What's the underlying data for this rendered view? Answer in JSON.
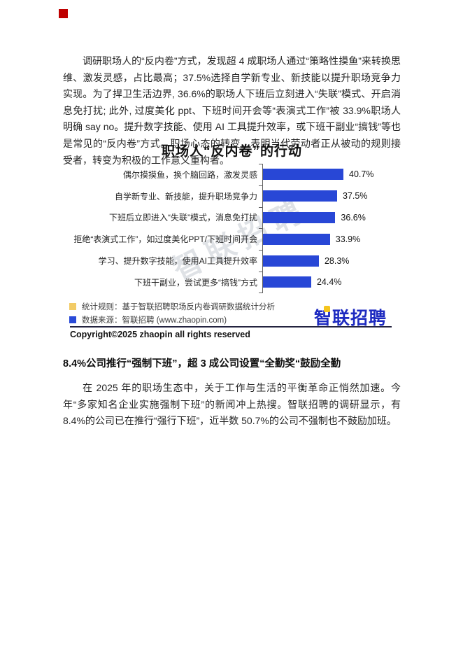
{
  "intro_paragraph": "调研职场人的“反内卷”方式，发现超 4 成职场人通过“策略性摸鱼”来转换思维、激发灵感，占比最高；37.5%选择自学新专业、新技能以提升职场竞争力实现。为了捍卫生活边界, 36.6%的职场人下班后立刻进入“失联”模式、开启消息免打扰; 此外, 过度美化 ppt、下班时间开会等“表演式工作”被 33.9%职场人明确 say no。提升数字技能、使用 AI 工具提升效率，或下班干副业“搞钱”等也是常见的“反内卷”方式。职场心态的转变，表明当代劳动者正从被动的规则接受者，转变为积极的工作意义重构者。",
  "chart_data": {
    "type": "bar",
    "orientation": "horizontal",
    "title": "职场人“反内卷”的行动",
    "categories": [
      "偶尔摸摸鱼，换个脑回路，激发灵感",
      "自学新专业、新技能，提升职场竞争力",
      "下班后立即进入“失联”模式，消息免打扰",
      "拒绝“表演式工作”，如过度美化PPT/下班时间开会",
      "学习、提升数字技能，使用AI工具提升效率",
      "下班干副业，尝试更多“搞钱”方式"
    ],
    "values": [
      40.7,
      37.5,
      36.6,
      33.9,
      28.3,
      24.4
    ],
    "value_labels": [
      "40.7%",
      "37.5%",
      "36.6%",
      "33.9%",
      "28.3%",
      "24.4%"
    ],
    "unit": "%",
    "xlim": [
      0,
      45
    ],
    "grid": false,
    "bar_color": "#2847d6",
    "axis_color": "#606060",
    "watermark": "智联招聘"
  },
  "legend": {
    "items": [
      {
        "swatch": "#f2cb66",
        "text": "统计规则：基于智联招聘职场反内卷调研数据统计分析"
      },
      {
        "swatch": "#2a4bd8",
        "text": "数据来源：智联招聘 (www.zhaopin.com)"
      }
    ]
  },
  "brand": {
    "logo_text": "智联招聘",
    "logo_color": "#1d2ac0",
    "logo_accent_color": "#f5c51d",
    "copyright": "Copyright©2025 zhaopin all rights reserved"
  },
  "section": {
    "heading": "8.4%公司推行“强制下班”，超 3 成公司设置“全勤奖“鼓励全勤",
    "paragraph": "在 2025 年的职场生态中，关于工作与生活的平衡革命正悄然加速。今年“多家知名企业实施强制下班”的新闻冲上热搜。智联招聘的调研显示，有 8.4%的公司已在推行“强行下班”，近半数 50.7%的公司不强制也不鼓励加班。"
  },
  "decor": {
    "corner_mark_color": "#bf0000"
  }
}
